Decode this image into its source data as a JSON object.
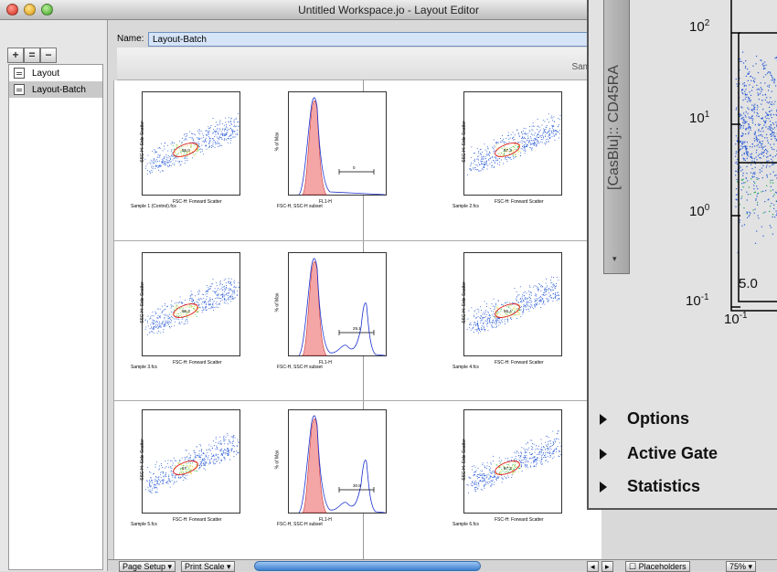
{
  "window": {
    "title": "Untitled Workspace.jo - Layout Editor"
  },
  "sidebar": {
    "toolbar": [
      "+",
      "=",
      "−"
    ],
    "items": [
      {
        "label": "Layout",
        "selected": false
      },
      {
        "label": "Layout-Batch",
        "selected": true
      }
    ]
  },
  "name_field": {
    "label": "Name:",
    "value": "Layout-Batch"
  },
  "subbar": {
    "label": "Sam"
  },
  "plots": [
    {
      "caption": "Sample 1 (Control).fcs",
      "xlabel": "FSC-H: Forward Scatter",
      "ylabel": "SSC-H: Side Scatter",
      "gate": "55.0"
    },
    {
      "caption": "FSC-H, SSC-H subset",
      "xlabel": "FL1-H",
      "ylabel": "% of Max",
      "gate": "0"
    },
    {
      "caption": "Sample 2.fcs",
      "xlabel": "FSC-H: Forward Scatter",
      "ylabel": "SSC-H: Side Scatter",
      "gate": "57.3"
    },
    {
      "caption": "Sample 3.fcs",
      "xlabel": "FSC-H: Forward Scatter",
      "ylabel": "SSC-H: Side Scatter",
      "gate": "55.2"
    },
    {
      "caption": "FSC-H, SSC-H subset",
      "xlabel": "FL1-H",
      "ylabel": "% of Max",
      "gate": "29.1"
    },
    {
      "caption": "Sample 4.fcs",
      "xlabel": "FSC-H: Forward Scatter",
      "ylabel": "SSC-H: Side Scatter",
      "gate": "55.4"
    },
    {
      "caption": "Sample 5.fcs",
      "xlabel": "FSC-H: Forward Scatter",
      "ylabel": "SSC-H: Side Scatter",
      "gate": "57"
    },
    {
      "caption": "FSC-H, SSC-H subset",
      "xlabel": "FL1-H",
      "ylabel": "% of Max",
      "gate": "30.8"
    },
    {
      "caption": "Sample 6.fcs",
      "xlabel": "FSC-H: Forward Scatter",
      "ylabel": "SSC-H: Side Scatter",
      "gate": "57.3"
    }
  ],
  "bottombar": {
    "page_setup": "Page Setup",
    "print_scale": "Print Scale",
    "placeholders": "Placeholders",
    "zoom": "75%"
  },
  "inspector": {
    "axis_label": "[CasBlu]:: CD45RA",
    "y_ticks": [
      "10",
      "10",
      "10",
      "10"
    ],
    "y_exps": [
      "2",
      "1",
      "0",
      "-1"
    ],
    "x_tick": "10",
    "x_exp": "-1",
    "gate_value": "5.0",
    "sections": [
      "Options",
      "Active Gate",
      "Statistics"
    ]
  },
  "colors": {
    "titlebar": "#d4d4d4",
    "selection": "#c9c9c9",
    "name_input": "#d6e4f7",
    "histogram_fill": "#f4a6a6",
    "histogram_line": "#1a2fcf",
    "scatter_dots": "#2b5cd6"
  }
}
